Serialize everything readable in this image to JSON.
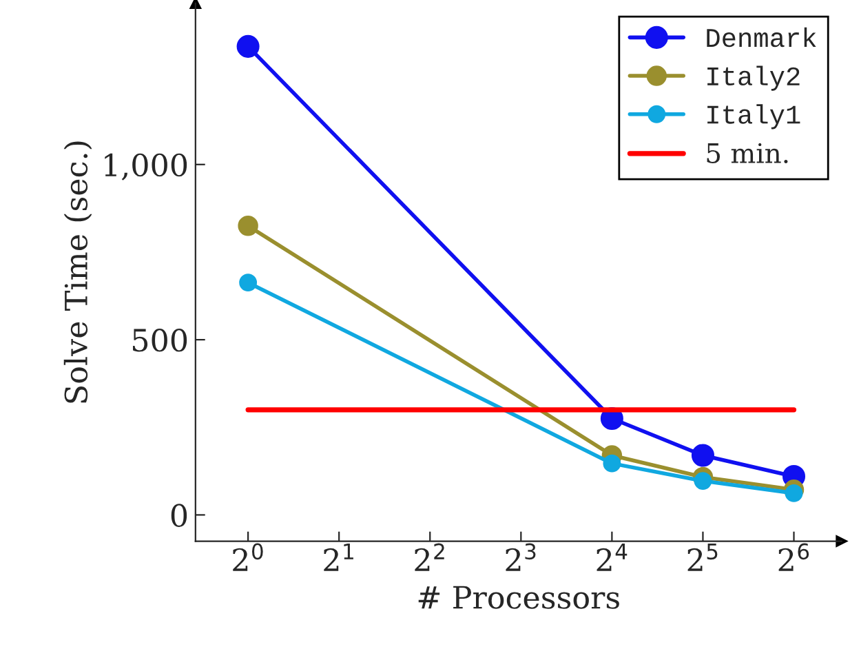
{
  "chart_data": {
    "type": "line",
    "xlabel": "# Processors",
    "ylabel": "Solve Time (sec.)",
    "log": "x",
    "marker": "circle",
    "grid": false,
    "legend": "top right",
    "xlim": [
      0.67,
      92
    ],
    "ylim": [
      -75,
      1460
    ],
    "xticks": [
      {
        "value": 1,
        "label": "2$^{0}$"
      },
      {
        "value": 2,
        "label": "2$^{1}$"
      },
      {
        "value": 4,
        "label": "2$^{2}$"
      },
      {
        "value": 8,
        "label": "2$^{3}$"
      },
      {
        "value": 16,
        "label": "2$^{4}$"
      },
      {
        "value": 32,
        "label": "2$^{5}$"
      },
      {
        "value": 64,
        "label": "2$^{6}$"
      }
    ],
    "yticks": [
      0,
      500,
      {
        "value": 1000,
        "label": "1,000"
      }
    ],
    "x": [
      1,
      16,
      32,
      64
    ],
    "series": [
      {
        "name": "Denmark",
        "color": "#1010f0",
        "values": [
          1337,
          275,
          170,
          110
        ]
      },
      {
        "name": "Italy2",
        "color": "#9a8f2e",
        "values": [
          825,
          170,
          108,
          72
        ]
      },
      {
        "name": "Italy1",
        "color": "#10a8e0",
        "values": [
          663,
          147,
          97,
          62
        ]
      },
      {
        "name": "5 min.",
        "color": "#ff0000",
        "x": [
          1,
          64
        ],
        "values": [
          300,
          300
        ],
        "marker": "none"
      }
    ]
  }
}
